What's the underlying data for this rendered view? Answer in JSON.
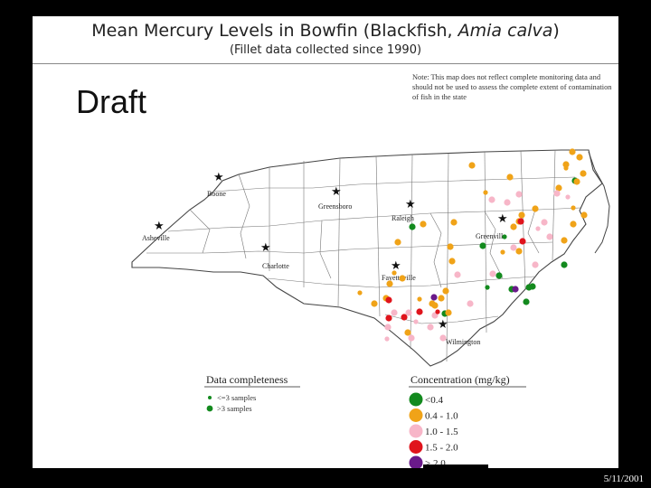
{
  "title": {
    "main": "Mean Mercury Levels in Bowfin (Blackfish, ",
    "species": "Amia calva",
    "close": ")",
    "subtitle": "(Fillet data collected since 1990)"
  },
  "draft_label": "Draft",
  "note": "Note: This map does not reflect complete monitoring data and should not be used to assess the complete extent of contamination of fish in the state",
  "cities": [
    {
      "name": "Boone",
      "star": true
    },
    {
      "name": "Greensboro",
      "star": true
    },
    {
      "name": "Raleigh",
      "star": true
    },
    {
      "name": "Asheville",
      "star": true
    },
    {
      "name": "Charlotte",
      "star": true
    },
    {
      "name": "Greenville",
      "star": true
    },
    {
      "name": "Fayetteville",
      "star": true
    },
    {
      "name": "Wilmington",
      "star": true
    }
  ],
  "legend": {
    "completeness": {
      "title": "Data completeness",
      "items": [
        "<=3 samples",
        ">3 samples"
      ]
    },
    "concentration": {
      "title": "Concentration (mg/kg)",
      "items": [
        {
          "label": "<0.4",
          "color": "#138a1e"
        },
        {
          "label": "0.4 - 1.0",
          "color": "#f0a318"
        },
        {
          "label": "1.0 - 1.5",
          "color": "#f7b6c8"
        },
        {
          "label": "1.5 - 2.0",
          "color": "#e0141c"
        },
        {
          "label": "> 2.0",
          "color": "#6a1a8a"
        }
      ]
    }
  },
  "sites": [
    {
      "category": "<0.4",
      "count": 12
    },
    {
      "category": "0.4 - 1.0",
      "count": 38
    },
    {
      "category": "1.0 - 1.5",
      "count": 22
    },
    {
      "category": "1.5 - 2.0",
      "count": 7
    },
    {
      "category": "> 2.0",
      "count": 2
    }
  ],
  "footer_date": "5/11/2001"
}
